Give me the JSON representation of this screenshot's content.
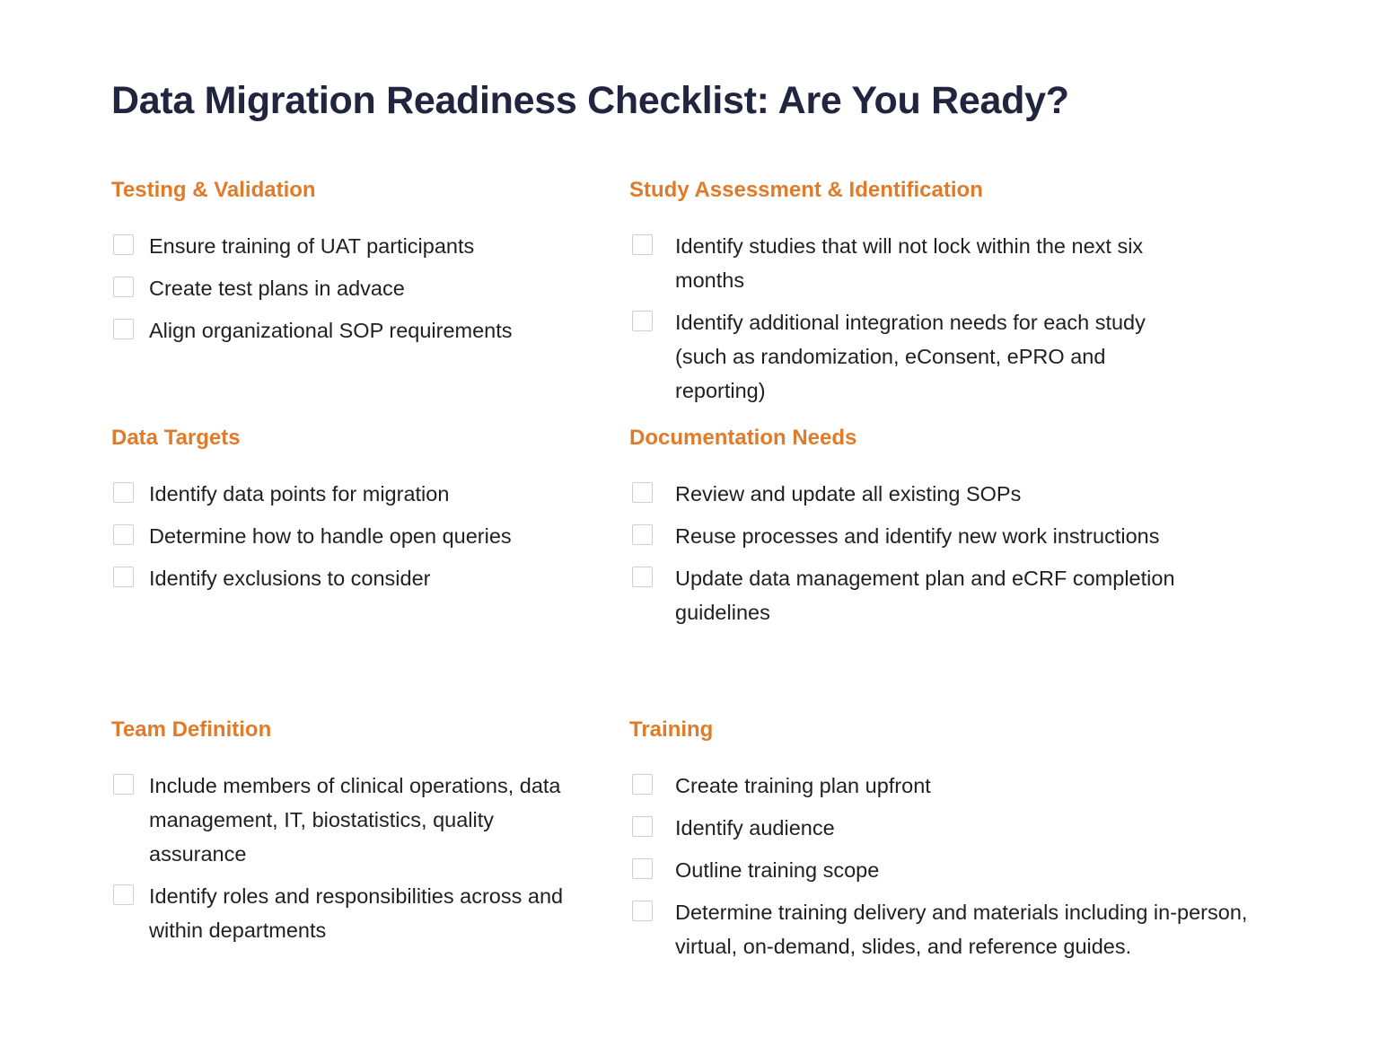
{
  "title": "Data Migration Readiness Checklist: Are You Ready?",
  "accent_color": "#e07b2a",
  "title_color": "#22253f",
  "sections": [
    {
      "heading": "Testing & Validation",
      "items": [
        "Ensure training of UAT participants",
        "Create test plans in advace",
        "Align organizational SOP requirements"
      ]
    },
    {
      "heading": "Study Assessment & Identification",
      "items": [
        "Identify studies that will not lock within the next six months",
        "Identify additional integration needs for each study (such as randomization, eConsent, ePRO and reporting)"
      ]
    },
    {
      "heading": "Data Targets",
      "items": [
        "Identify data points for migration",
        "Determine how to handle open queries",
        "Identify exclusions to consider"
      ]
    },
    {
      "heading": "Documentation Needs",
      "items": [
        "Review and update all existing SOPs",
        "Reuse processes and identify new work instructions",
        "Update data management plan and eCRF completion guidelines"
      ]
    },
    {
      "heading": "Team Definition",
      "items": [
        "Include members of clinical operations, data management, IT, biostatistics, quality assurance",
        "Identify roles and responsibilities across and within departments"
      ]
    },
    {
      "heading": "Training",
      "items": [
        "Create training plan upfront",
        "Identify audience",
        "Outline training scope",
        "Determine training delivery and materials including in-person, virtual, on-demand, slides, and reference guides."
      ]
    }
  ]
}
